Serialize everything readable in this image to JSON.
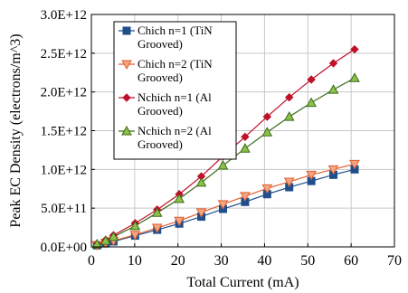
{
  "chart_data": {
    "type": "line",
    "xlabel": "Total Current (mA)",
    "ylabel": "Peak EC Density (electrons/m^3)",
    "xlim": [
      0,
      70
    ],
    "ylim": [
      0,
      3000000000000.0
    ],
    "x_ticks": [
      0,
      10,
      20,
      30,
      40,
      50,
      60,
      70
    ],
    "x_tick_labels": [
      "0",
      "10",
      "20",
      "30",
      "40",
      "50",
      "60",
      "70"
    ],
    "y_ticks": [
      0,
      500000000000.0,
      1000000000000.0,
      1500000000000.0,
      2000000000000.0,
      2500000000000.0,
      3000000000000.0
    ],
    "y_tick_labels": [
      "0.0E+00",
      "5.0E+11",
      "1.0E+12",
      "1.5E+12",
      "2.0E+12",
      "2.5E+12",
      "3.0E+12"
    ],
    "grid": true,
    "legend_position": "top-left",
    "series": [
      {
        "name": "Chich n=1 (TiN Grooved)",
        "legend_lines": [
          "Chich n=1 (TiN",
          "Grooved)"
        ],
        "color": "#1f4e8c",
        "line_color": "#1f4e8c",
        "marker": "square",
        "x": [
          1.3,
          3.3,
          5.1,
          10.1,
          15.2,
          20.3,
          25.4,
          30.4,
          35.5,
          40.6,
          45.7,
          50.8,
          55.9,
          60.8
        ],
        "y": [
          20000000000.0,
          45000000000.0,
          70000000000.0,
          145000000000.0,
          220000000000.0,
          300000000000.0,
          390000000000.0,
          490000000000.0,
          580000000000.0,
          680000000000.0,
          770000000000.0,
          850000000000.0,
          930000000000.0,
          1000000000000.0
        ]
      },
      {
        "name": "Chich n=2 (TiN Grooved)",
        "legend_lines": [
          "Chich n=2 (TiN",
          "Grooved)"
        ],
        "color": "#f4a582",
        "line_color": "#e06030",
        "marker": "triangle-down",
        "x": [
          1.3,
          3.3,
          5.1,
          10.1,
          15.2,
          20.3,
          25.4,
          30.4,
          35.5,
          40.6,
          45.7,
          50.8,
          55.9,
          60.8
        ],
        "y": [
          22000000000.0,
          50000000000.0,
          80000000000.0,
          155000000000.0,
          245000000000.0,
          335000000000.0,
          445000000000.0,
          550000000000.0,
          655000000000.0,
          755000000000.0,
          840000000000.0,
          930000000000.0,
          1000000000000.0,
          1070000000000.0
        ]
      },
      {
        "name": "Nchich n=1 (Al Grooved)",
        "legend_lines": [
          "Nchich n=1 (Al",
          "Grooved)"
        ],
        "color": "#c0102a",
        "line_color": "#c0102a",
        "marker": "diamond",
        "x": [
          1.3,
          3.3,
          5.1,
          10.1,
          15.2,
          20.3,
          25.4,
          30.4,
          35.5,
          40.6,
          45.7,
          50.8,
          55.9,
          60.8
        ],
        "y": [
          40000000000.0,
          90000000000.0,
          150000000000.0,
          305000000000.0,
          480000000000.0,
          680000000000.0,
          910000000000.0,
          1170000000000.0,
          1420000000000.0,
          1680000000000.0,
          1930000000000.0,
          2160000000000.0,
          2370000000000.0,
          2550000000000.0
        ]
      },
      {
        "name": "Nchich n=2 (Al Grooved)",
        "legend_lines": [
          "Nchich n=2 (Al",
          "Grooved)"
        ],
        "color": "#8cc04a",
        "line_color": "#3a6a1a",
        "marker": "triangle-up",
        "x": [
          1.3,
          3.3,
          5.1,
          10.1,
          15.2,
          20.3,
          25.4,
          30.4,
          35.5,
          40.6,
          45.7,
          50.8,
          55.9,
          60.8
        ],
        "y": [
          35000000000.0,
          80000000000.0,
          130000000000.0,
          270000000000.0,
          440000000000.0,
          620000000000.0,
          830000000000.0,
          1050000000000.0,
          1270000000000.0,
          1480000000000.0,
          1680000000000.0,
          1860000000000.0,
          2030000000000.0,
          2180000000000.0
        ]
      }
    ]
  }
}
